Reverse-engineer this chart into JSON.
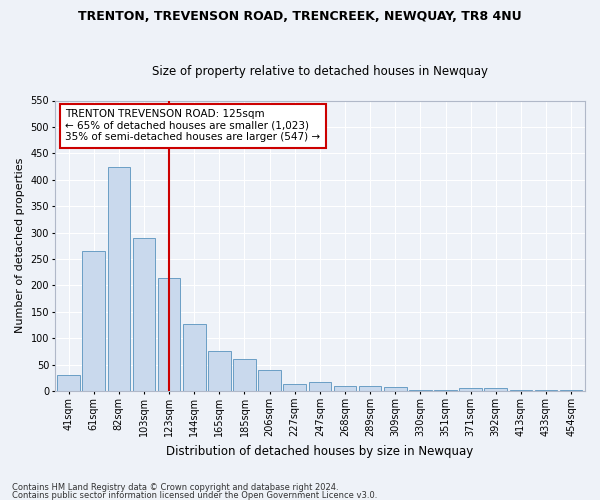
{
  "title": "TRENTON, TREVENSON ROAD, TRENCREEK, NEWQUAY, TR8 4NU",
  "subtitle": "Size of property relative to detached houses in Newquay",
  "xlabel": "Distribution of detached houses by size in Newquay",
  "ylabel": "Number of detached properties",
  "categories": [
    "41sqm",
    "61sqm",
    "82sqm",
    "103sqm",
    "123sqm",
    "144sqm",
    "165sqm",
    "185sqm",
    "206sqm",
    "227sqm",
    "247sqm",
    "268sqm",
    "289sqm",
    "309sqm",
    "330sqm",
    "351sqm",
    "371sqm",
    "392sqm",
    "413sqm",
    "433sqm",
    "454sqm"
  ],
  "values": [
    30,
    265,
    425,
    290,
    215,
    127,
    75,
    60,
    40,
    13,
    17,
    10,
    10,
    8,
    3,
    3,
    5,
    5,
    2,
    2,
    2
  ],
  "bar_color": "#c9d9ed",
  "bar_edge_color": "#6a9ec5",
  "vline_color": "#cc0000",
  "vline_index": 4,
  "ylim": [
    0,
    550
  ],
  "yticks": [
    0,
    50,
    100,
    150,
    200,
    250,
    300,
    350,
    400,
    450,
    500,
    550
  ],
  "annotation_title": "TRENTON TREVENSON ROAD: 125sqm",
  "annotation_line1": "← 65% of detached houses are smaller (1,023)",
  "annotation_line2": "35% of semi-detached houses are larger (547) →",
  "annotation_box_color": "white",
  "annotation_box_edge": "#cc0000",
  "footer1": "Contains HM Land Registry data © Crown copyright and database right 2024.",
  "footer2": "Contains public sector information licensed under the Open Government Licence v3.0.",
  "bg_color": "#eef2f8",
  "plot_bg_color": "#eef2f8",
  "grid_color": "white",
  "title_fontsize": 9,
  "subtitle_fontsize": 8.5,
  "ylabel_fontsize": 8,
  "xlabel_fontsize": 8.5,
  "tick_fontsize": 7,
  "annot_fontsize": 7.5,
  "footer_fontsize": 6
}
